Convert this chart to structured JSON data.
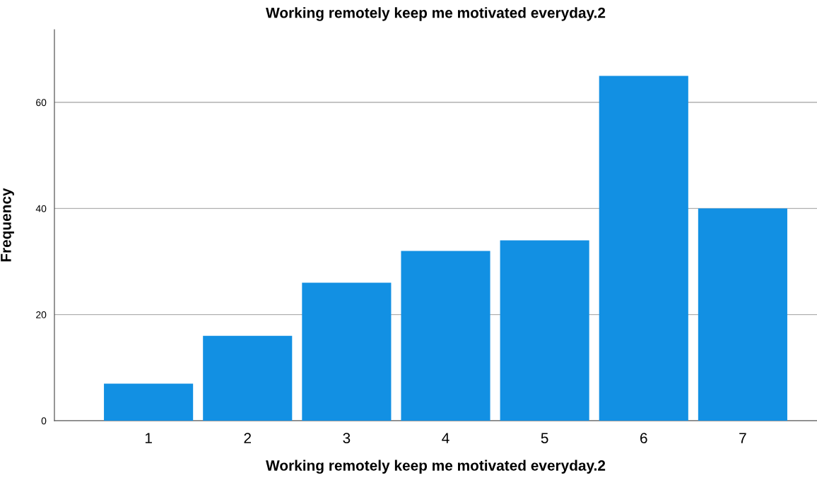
{
  "chart_data": {
    "type": "bar",
    "title": "Working remotely keep me motivated everyday.2",
    "xlabel": "Working remotely keep me motivated everyday.2",
    "ylabel": "Frequency",
    "categories": [
      "1",
      "2",
      "3",
      "4",
      "5",
      "6",
      "7"
    ],
    "values": [
      7,
      16,
      26,
      32,
      34,
      65,
      40
    ],
    "color": "#1290e3",
    "ylim": [
      0,
      73.7
    ],
    "yticks": [
      0,
      20,
      40,
      60
    ],
    "grid": "y"
  }
}
